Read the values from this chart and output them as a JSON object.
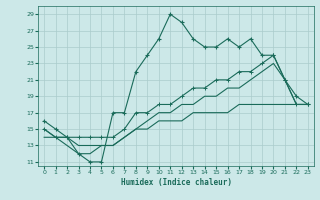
{
  "xlabel": "Humidex (Indice chaleur)",
  "bg_color": "#cce8e8",
  "grid_color": "#aacccc",
  "line_color": "#1a6b5a",
  "xlim": [
    -0.5,
    23.5
  ],
  "ylim": [
    10.5,
    30
  ],
  "xticks": [
    0,
    1,
    2,
    3,
    4,
    5,
    6,
    7,
    8,
    9,
    10,
    11,
    12,
    13,
    14,
    15,
    16,
    17,
    18,
    19,
    20,
    21,
    22,
    23
  ],
  "yticks": [
    11,
    13,
    15,
    17,
    19,
    21,
    23,
    25,
    27,
    29
  ],
  "line1_x": [
    0,
    1,
    2,
    3,
    4,
    5,
    6,
    7,
    8,
    9,
    10,
    11,
    12,
    13,
    14,
    15,
    16,
    17,
    18,
    19,
    20,
    21,
    22,
    23
  ],
  "line1_y": [
    16,
    15,
    14,
    12,
    11,
    11,
    17,
    17,
    22,
    24,
    26,
    29,
    28,
    26,
    25,
    25,
    26,
    25,
    26,
    24,
    24,
    21,
    19,
    18
  ],
  "line2_x": [
    0,
    1,
    2,
    3,
    4,
    5,
    6,
    7,
    8,
    9,
    10,
    11,
    12,
    13,
    14,
    15,
    16,
    17,
    18,
    19,
    20,
    21,
    22,
    23
  ],
  "line2_y": [
    15,
    14,
    14,
    14,
    14,
    14,
    14,
    15,
    17,
    17,
    18,
    18,
    19,
    20,
    20,
    21,
    21,
    22,
    22,
    23,
    24,
    21,
    18,
    18
  ],
  "line3_x": [
    0,
    1,
    2,
    3,
    4,
    5,
    6,
    7,
    8,
    9,
    10,
    11,
    12,
    13,
    14,
    15,
    16,
    17,
    18,
    19,
    20,
    21,
    22,
    23
  ],
  "line3_y": [
    15,
    14,
    14,
    13,
    13,
    13,
    13,
    14,
    15,
    16,
    17,
    17,
    18,
    18,
    19,
    19,
    20,
    20,
    21,
    22,
    23,
    21,
    18,
    18
  ],
  "line4_x": [
    0,
    1,
    2,
    3,
    4,
    5,
    6,
    7,
    8,
    9,
    10,
    11,
    12,
    13,
    14,
    15,
    16,
    17,
    18,
    19,
    20,
    21,
    22,
    23
  ],
  "line4_y": [
    14,
    14,
    13,
    12,
    12,
    13,
    13,
    14,
    15,
    15,
    16,
    16,
    16,
    17,
    17,
    17,
    17,
    18,
    18,
    18,
    18,
    18,
    18,
    18
  ]
}
